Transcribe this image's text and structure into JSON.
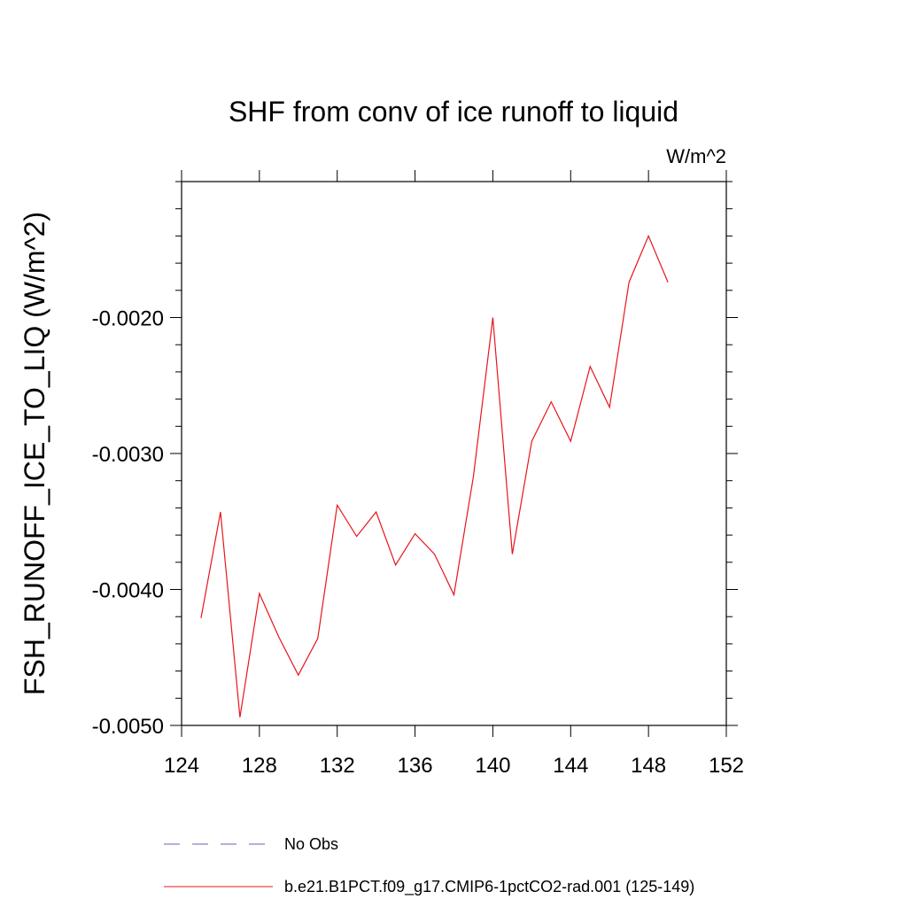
{
  "chart_data": {
    "type": "line",
    "title": "SHF from conv of ice runoff to liquid",
    "units_label": "W/m^2",
    "xlabel": "",
    "ylabel": "FSH_RUNOFF_ICE_TO_LIQ  (W/m^2)",
    "xlim": [
      124,
      152
    ],
    "ylim": [
      -0.005,
      -0.001
    ],
    "x_ticks": [
      124,
      128,
      132,
      136,
      140,
      144,
      148,
      152
    ],
    "x_tick_labels": [
      "124",
      "128",
      "132",
      "136",
      "140",
      "144",
      "148",
      "152"
    ],
    "y_ticks": [
      -0.005,
      -0.004,
      -0.003,
      -0.002
    ],
    "y_tick_labels": [
      "-0.0050",
      "-0.0040",
      "-0.0030",
      "-0.0020"
    ],
    "y_minor_step": 0.0002,
    "x_minor_step": 4,
    "grid": false,
    "legend_position": "bottom",
    "series": [
      {
        "name": "b.e21.B1PCT.f09_g17.CMIP6-1pctCO2-rad.001 (125-149)",
        "color": "#e8141c",
        "style": "solid",
        "x": [
          125,
          126,
          127,
          128,
          129,
          130,
          131,
          132,
          133,
          134,
          135,
          136,
          137,
          138,
          139,
          140,
          141,
          142,
          143,
          144,
          145,
          146,
          147,
          148,
          149
        ],
        "y": [
          -0.00421,
          -0.00343,
          -0.00494,
          -0.00403,
          -0.00435,
          -0.00463,
          -0.00436,
          -0.00338,
          -0.00361,
          -0.00343,
          -0.00382,
          -0.00359,
          -0.00374,
          -0.00404,
          -0.00317,
          -0.002,
          -0.00374,
          -0.00291,
          -0.00262,
          -0.00291,
          -0.00236,
          -0.00266,
          -0.00174,
          -0.0014,
          -0.00174
        ]
      }
    ],
    "legend": [
      {
        "label": "No Obs",
        "color": "#6b5fb5",
        "style": "dashed"
      },
      {
        "label": "b.e21.B1PCT.f09_g17.CMIP6-1pctCO2-rad.001 (125-149)",
        "color": "#e8141c",
        "style": "solid"
      }
    ]
  }
}
